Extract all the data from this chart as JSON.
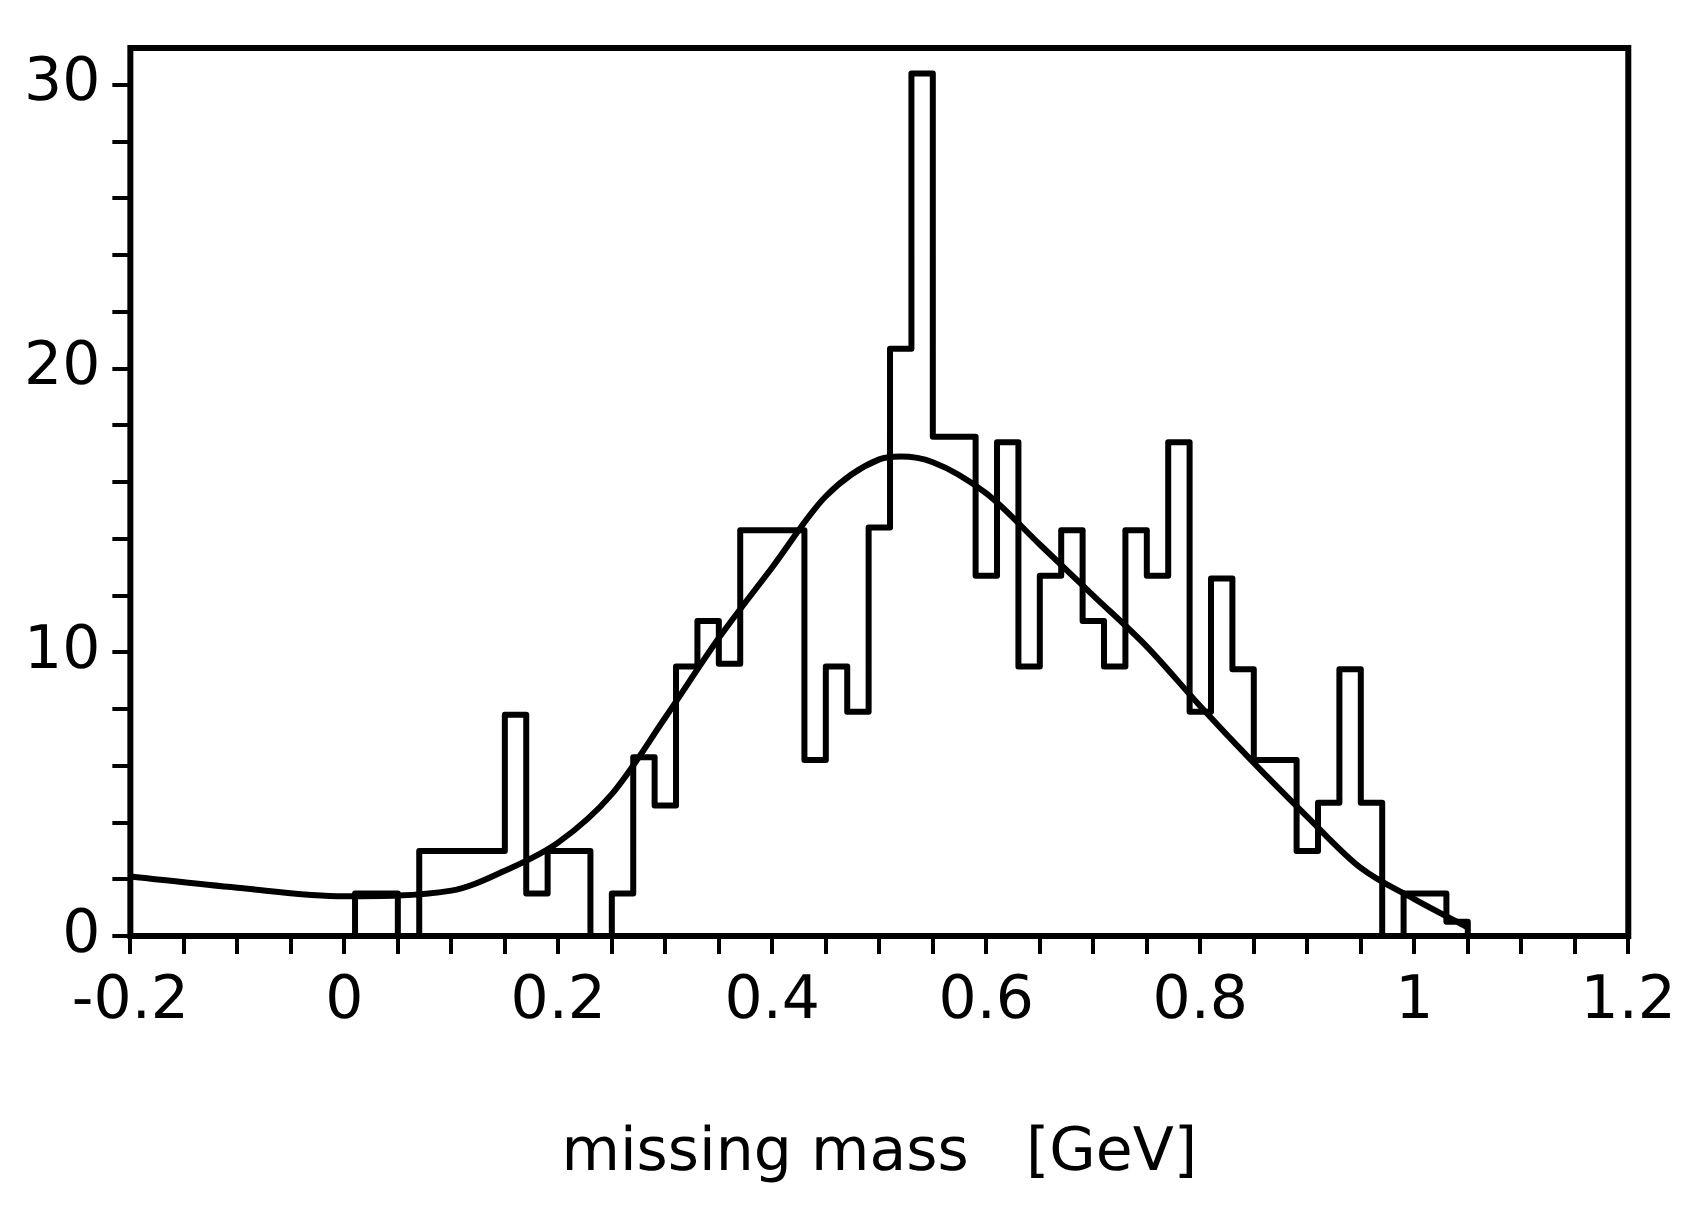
{
  "chart_data": {
    "type": "histogram",
    "xlabel": "missing mass   [GeV]",
    "bins": [
      0.01,
      0.03,
      0.05,
      0.07,
      0.09,
      0.11,
      0.13,
      0.15,
      0.17,
      0.19,
      0.21,
      0.23,
      0.25,
      0.27,
      0.29,
      0.31,
      0.33,
      0.35,
      0.37,
      0.39,
      0.41,
      0.43,
      0.45,
      0.47,
      0.49,
      0.51,
      0.53,
      0.55,
      0.57,
      0.59,
      0.61,
      0.63,
      0.65,
      0.67,
      0.69,
      0.71,
      0.73,
      0.75,
      0.77,
      0.79,
      0.81,
      0.83,
      0.85,
      0.87,
      0.89,
      0.91,
      0.93,
      0.95,
      0.97,
      0.99,
      1.01,
      1.03,
      1.05
    ],
    "values": [
      1.5,
      1.5,
      0,
      3,
      3,
      3,
      3,
      7.8,
      1.5,
      3,
      3,
      0,
      1.5,
      6.3,
      4.6,
      9.5,
      11.1,
      9.6,
      14.3,
      14.3,
      14.3,
      6.2,
      9.5,
      7.9,
      14.4,
      20.7,
      30.4,
      17.6,
      17.6,
      12.7,
      17.4,
      9.5,
      12.7,
      14.3,
      11.1,
      9.5,
      14.3,
      12.7,
      17.4,
      7.9,
      12.6,
      9.4,
      6.2,
      6.2,
      3,
      4.7,
      9.4,
      4.7,
      0,
      1.5,
      1.5,
      0.5
    ],
    "color": "#000000",
    "series": [
      {
        "type": "line",
        "color": "#000000",
        "x": [
          -0.2,
          -0.1,
          0,
          0.1,
          0.15,
          0.2,
          0.25,
          0.3,
          0.35,
          0.4,
          0.45,
          0.5,
          0.52,
          0.55,
          0.6,
          0.65,
          0.7,
          0.75,
          0.8,
          0.85,
          0.9,
          0.95,
          1.0,
          1.05
        ],
        "values": [
          2.1,
          1.7,
          1.4,
          1.6,
          2.3,
          3.3,
          5,
          7.7,
          10.5,
          13,
          15.5,
          16.8,
          16.9,
          16.7,
          15.6,
          13.8,
          12,
          10.2,
          8.1,
          6.1,
          4.2,
          2.4,
          1.3,
          0.3
        ]
      }
    ],
    "xlim": [
      -0.2,
      1.2
    ],
    "ylim": [
      0,
      31.3
    ],
    "xticks": [
      -0.2,
      {
        "value": -0.15,
        "label": null
      },
      {
        "value": -0.1,
        "label": null
      },
      {
        "value": -0.05,
        "label": null
      },
      0,
      {
        "value": 0.05,
        "label": null
      },
      {
        "value": 0.1,
        "label": null
      },
      {
        "value": 0.15,
        "label": null
      },
      0.2,
      {
        "value": 0.25,
        "label": null
      },
      {
        "value": 0.3,
        "label": null
      },
      {
        "value": 0.35,
        "label": null
      },
      0.4,
      {
        "value": 0.45,
        "label": null
      },
      {
        "value": 0.5,
        "label": null
      },
      {
        "value": 0.55,
        "label": null
      },
      0.6,
      {
        "value": 0.65,
        "label": null
      },
      {
        "value": 0.7,
        "label": null
      },
      {
        "value": 0.75,
        "label": null
      },
      0.8,
      {
        "value": 0.85,
        "label": null
      },
      {
        "value": 0.9,
        "label": null
      },
      {
        "value": 0.95,
        "label": null
      },
      1,
      {
        "value": 1.05,
        "label": null
      },
      {
        "value": 1.1,
        "label": null
      },
      {
        "value": 1.15,
        "label": null
      },
      1.2
    ],
    "yticks": [
      0,
      {
        "value": 2,
        "label": null
      },
      {
        "value": 4,
        "label": null
      },
      {
        "value": 6,
        "label": null
      },
      {
        "value": 8,
        "label": null
      },
      10,
      {
        "value": 12,
        "label": null
      },
      {
        "value": 14,
        "label": null
      },
      {
        "value": 16,
        "label": null
      },
      {
        "value": 18,
        "label": null
      },
      20,
      {
        "value": 22,
        "label": null
      },
      {
        "value": 24,
        "label": null
      },
      {
        "value": 26,
        "label": null
      },
      {
        "value": 28,
        "label": null
      },
      30
    ]
  }
}
